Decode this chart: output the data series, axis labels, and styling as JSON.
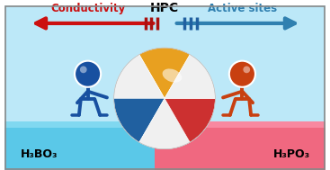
{
  "bg_light_blue": "#bce8f8",
  "bg_blue_platform": "#5ac8e8",
  "bg_pink_platform": "#f06880",
  "bg_blue_platform_top": "#80d8f0",
  "bg_pink_platform_top": "#f888a0",
  "stick_blue_color": "#1850a0",
  "stick_orange_color": "#c84010",
  "arrow_red_color": "#cc1010",
  "arrow_blue_color": "#3080b0",
  "conductivity_text": "Conductivity",
  "active_sites_text": "Active sites",
  "hpc_text": "HPC",
  "left_label": "H₃BO₃",
  "right_label": "H₃PO₃",
  "ball_orange": "#e8a020",
  "ball_white": "#f0f0f0",
  "ball_blue": "#2060a0",
  "ball_red": "#cc3030",
  "figsize": [
    3.67,
    1.89
  ],
  "dpi": 100
}
